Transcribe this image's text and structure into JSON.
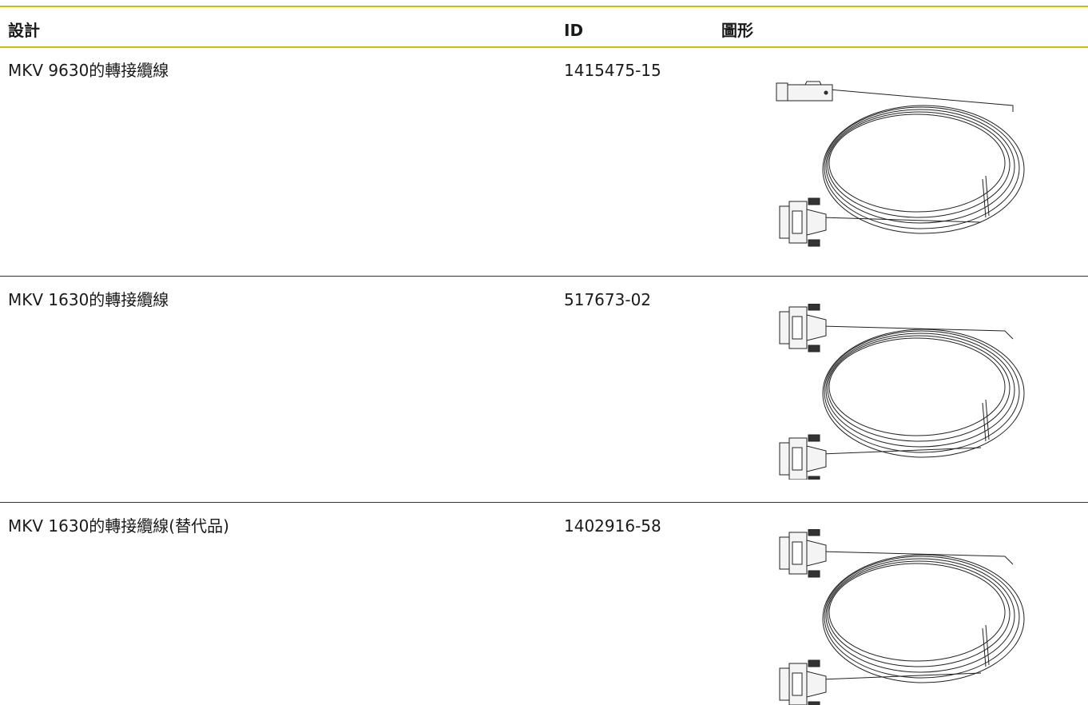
{
  "table": {
    "header": [
      "設計",
      "ID",
      "圖形"
    ],
    "rows": [
      [
        "MKV 9630的轉接纜線",
        "1415475-15"
      ],
      [
        "MKV 1630的轉接纜線",
        "517673-02"
      ],
      [
        "MKV 1630的轉接纜線(替代品)",
        "1402916-58"
      ]
    ]
  }
}
